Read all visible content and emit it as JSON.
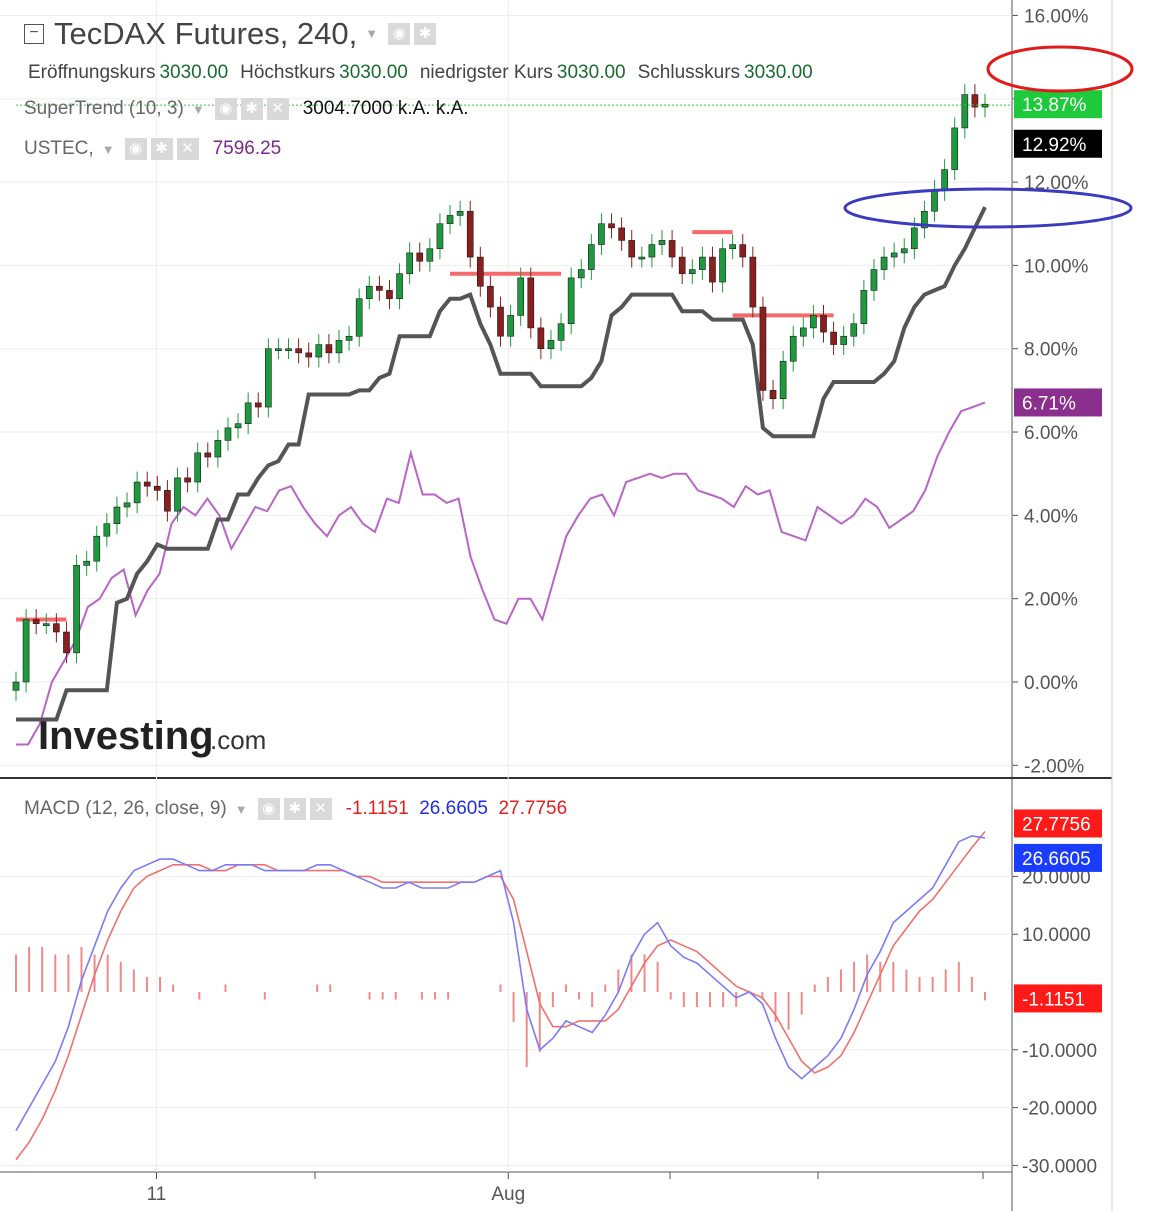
{
  "header": {
    "title": "TecDAX Futures, 240,",
    "ohlc": [
      {
        "label": "Eröffnungskurs",
        "value": "3030.00"
      },
      {
        "label": "Höchstkurs",
        "value": "3030.00"
      },
      {
        "label": "niedrigster Kurs",
        "value": "3030.00"
      },
      {
        "label": "Schlusskurs",
        "value": "3030.00"
      }
    ],
    "supertrend": {
      "label": "SuperTrend (10, 3)",
      "value": "3004.7000",
      "extra1": "k.A.",
      "extra2": "k.A."
    },
    "ustec": {
      "label": "USTEC,",
      "value": "7596.25"
    },
    "macd": {
      "label": "MACD (12, 26, close, 9)",
      "hist": "-1.1151",
      "macd": "26.6605",
      "signal": "27.7756"
    }
  },
  "watermark": {
    "brand": "Investing",
    "suffix": ".com"
  },
  "colors": {
    "up": "#1e9a3e",
    "down": "#8b1e1e",
    "st_up": "#555555",
    "st_down": "#f46a6a",
    "ustec": "#b865c6",
    "macd": "#7b7bf7",
    "signal": "#f07070",
    "hist": "#f08a8a",
    "annot_red": "#e01b1b",
    "annot_blue": "#3b3bbf"
  },
  "chart_data": [
    {
      "type": "line",
      "panel": "price",
      "yticks": [
        "16.00%",
        "14.00%",
        "12.00%",
        "10.00%",
        "8.00%",
        "6.00%",
        "4.00%",
        "2.00%",
        "0.00%",
        "-2.00%"
      ],
      "ylim": [
        -2,
        16
      ],
      "xlim": [
        0,
        100
      ],
      "xticks": [
        {
          "x": 14.5,
          "label": "11"
        },
        {
          "x": 50.8,
          "label": "Aug"
        }
      ],
      "candles_close_pct": [
        0.0,
        1.5,
        1.4,
        1.4,
        1.2,
        0.7,
        2.8,
        2.9,
        3.5,
        3.8,
        4.2,
        4.3,
        4.8,
        4.7,
        4.6,
        4.1,
        4.9,
        4.8,
        5.5,
        5.4,
        5.8,
        6.1,
        6.2,
        6.7,
        6.6,
        8.0,
        8.0,
        8.0,
        7.9,
        7.8,
        8.1,
        7.9,
        8.2,
        8.3,
        9.2,
        9.5,
        9.4,
        9.2,
        9.8,
        10.3,
        10.1,
        10.4,
        11.0,
        11.2,
        11.3,
        10.2,
        9.5,
        9.0,
        8.3,
        8.8,
        9.7,
        8.5,
        8.0,
        8.2,
        8.6,
        9.7,
        9.9,
        10.5,
        11.0,
        10.9,
        10.6,
        10.2,
        10.2,
        10.5,
        10.6,
        10.2,
        9.8,
        9.9,
        10.2,
        9.6,
        10.4,
        10.5,
        10.2,
        9.0,
        7.0,
        6.8,
        7.7,
        8.3,
        8.5,
        8.8,
        8.4,
        8.1,
        8.3,
        8.6,
        9.4,
        9.9,
        10.2,
        10.3,
        10.4,
        10.9,
        11.3,
        11.8,
        12.3,
        13.3,
        14.1,
        13.8,
        13.87
      ],
      "series": [
        {
          "name": "USTEC",
          "values_pct": [
            -1.5,
            -1.5,
            -1.0,
            0.0,
            0.5,
            1.0,
            1.8,
            2.0,
            2.5,
            2.7,
            1.6,
            2.2,
            2.6,
            3.8,
            4.2,
            4.0,
            4.4,
            4.0,
            3.2,
            3.7,
            4.2,
            4.1,
            4.6,
            4.7,
            4.2,
            3.8,
            3.5,
            4.0,
            4.2,
            3.8,
            3.6,
            4.4,
            4.3,
            5.5,
            4.5,
            4.5,
            4.3,
            4.4,
            3.0,
            2.2,
            1.5,
            1.4,
            2.0,
            2.0,
            1.5,
            2.5,
            3.5,
            4.0,
            4.4,
            4.5,
            4.0,
            4.8,
            4.9,
            5.0,
            4.9,
            5.0,
            5.0,
            4.6,
            4.5,
            4.4,
            4.2,
            4.7,
            4.5,
            4.6,
            3.6,
            3.5,
            3.4,
            4.2,
            4.0,
            3.8,
            4.0,
            4.4,
            4.2,
            3.7,
            3.9,
            4.1,
            4.6,
            5.4,
            6.0,
            6.5,
            6.6,
            6.71
          ]
        }
      ],
      "supertrend": {
        "name": "SuperTrend (10, 3)",
        "last_value": "12.92%"
      },
      "axis_labels": [
        {
          "text": "13.87%",
          "value": 13.87,
          "color": "#1ec93c"
        },
        {
          "text": "12.92%",
          "value": 12.92,
          "color": "#000000"
        },
        {
          "text": "6.71%",
          "value": 6.71,
          "color": "#8b2f8f"
        }
      ]
    },
    {
      "type": "line",
      "panel": "macd",
      "yticks": [
        "20.0000",
        "10.0000",
        "-10.0000",
        "-20.0000",
        "-30.0000"
      ],
      "ylim": [
        -30,
        30
      ],
      "series": [
        {
          "name": "MACD",
          "values": [
            -24,
            -20,
            -16,
            -12,
            -6,
            2,
            8,
            14,
            18,
            21,
            22,
            23,
            23,
            22,
            21,
            21,
            22,
            22,
            22,
            21,
            21,
            21,
            21,
            22,
            22,
            21,
            20,
            19,
            18,
            18,
            19,
            18,
            18,
            18,
            19,
            19,
            20,
            21,
            12,
            -3,
            -10,
            -8,
            -5,
            -6,
            -7,
            -4,
            0,
            6,
            10,
            12,
            8,
            6,
            5,
            3,
            1,
            -1,
            0,
            -2,
            -8,
            -13,
            -15,
            -13,
            -11,
            -8,
            -3,
            3,
            7,
            12,
            14,
            16,
            18,
            22,
            26,
            27,
            26.6605
          ]
        },
        {
          "name": "Signal",
          "values": [
            -29,
            -26,
            -22,
            -17,
            -11,
            -4,
            3,
            9,
            14,
            18,
            20,
            21,
            22,
            22,
            22,
            21,
            21,
            22,
            22,
            22,
            21,
            21,
            21,
            21,
            21,
            21,
            20,
            20,
            19,
            19,
            19,
            19,
            19,
            19,
            19,
            19,
            20,
            20,
            16,
            7,
            -2,
            -6,
            -6,
            -5,
            -5,
            -5,
            -3,
            1,
            5,
            8,
            9,
            8,
            7,
            5,
            3,
            1,
            0,
            -1,
            -4,
            -8,
            -12,
            -14,
            -13,
            -11,
            -7,
            -2,
            3,
            8,
            11,
            14,
            16,
            19,
            22,
            25,
            27.7756
          ]
        }
      ],
      "axis_labels": [
        {
          "text": "27.7756",
          "value": 27.7756,
          "color": "#ff1a1a"
        },
        {
          "text": "26.6605",
          "value": 26.6605,
          "color": "#1a3cff"
        },
        {
          "text": "-1.1151",
          "value": -1.1151,
          "color": "#ff1a1a"
        }
      ]
    }
  ]
}
